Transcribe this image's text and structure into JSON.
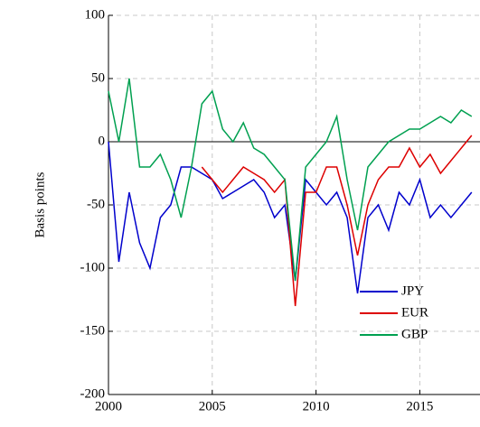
{
  "chart_data": {
    "type": "line",
    "y_label": "Basis points",
    "x": [
      2000,
      2000.5,
      2001,
      2001.5,
      2002,
      2002.5,
      2003,
      2003.5,
      2004,
      2004.5,
      2005,
      2005.5,
      2006,
      2006.5,
      2007,
      2007.5,
      2008,
      2008.5,
      2009,
      2009.5,
      2010,
      2010.5,
      2011,
      2011.5,
      2012,
      2012.5,
      2013,
      2013.5,
      2014,
      2014.5,
      2015,
      2015.5,
      2016,
      2016.5,
      2017,
      2017.5
    ],
    "series": [
      {
        "name": "JPY",
        "color": "#0000cc",
        "values": [
          0,
          -95,
          -40,
          -80,
          -100,
          -60,
          -50,
          -20,
          -20,
          -25,
          -30,
          -45,
          -40,
          -35,
          -30,
          -40,
          -60,
          -50,
          -110,
          -30,
          -40,
          -50,
          -40,
          -60,
          -120,
          -60,
          -50,
          -70,
          -40,
          -50,
          -30,
          -60,
          -50,
          -60,
          -50,
          -40
        ]
      },
      {
        "name": "EUR",
        "color": "#dd0000",
        "values": [
          null,
          null,
          null,
          null,
          null,
          null,
          null,
          null,
          null,
          -20,
          -30,
          -40,
          -30,
          -20,
          -25,
          -30,
          -40,
          -30,
          -130,
          -40,
          -40,
          -20,
          -20,
          -50,
          -90,
          -50,
          -30,
          -20,
          -20,
          -5,
          -20,
          -10,
          -25,
          -15,
          -5,
          5
        ]
      },
      {
        "name": "GBP",
        "color": "#00a050",
        "values": [
          40,
          0,
          50,
          -20,
          -20,
          -10,
          -30,
          -60,
          -20,
          30,
          40,
          10,
          0,
          15,
          -5,
          -10,
          -20,
          -30,
          -110,
          -20,
          -10,
          0,
          20,
          -30,
          -70,
          -20,
          -10,
          0,
          5,
          10,
          10,
          15,
          20,
          15,
          25,
          20
        ]
      }
    ],
    "xlim": [
      2000,
      2017.9
    ],
    "xticks": [
      2000,
      2005,
      2010,
      2015
    ],
    "ylim": [
      -200,
      100
    ],
    "yticks": [
      -200,
      -150,
      -100,
      -50,
      0,
      50,
      100
    ],
    "grid": true,
    "legend": "lower right"
  }
}
